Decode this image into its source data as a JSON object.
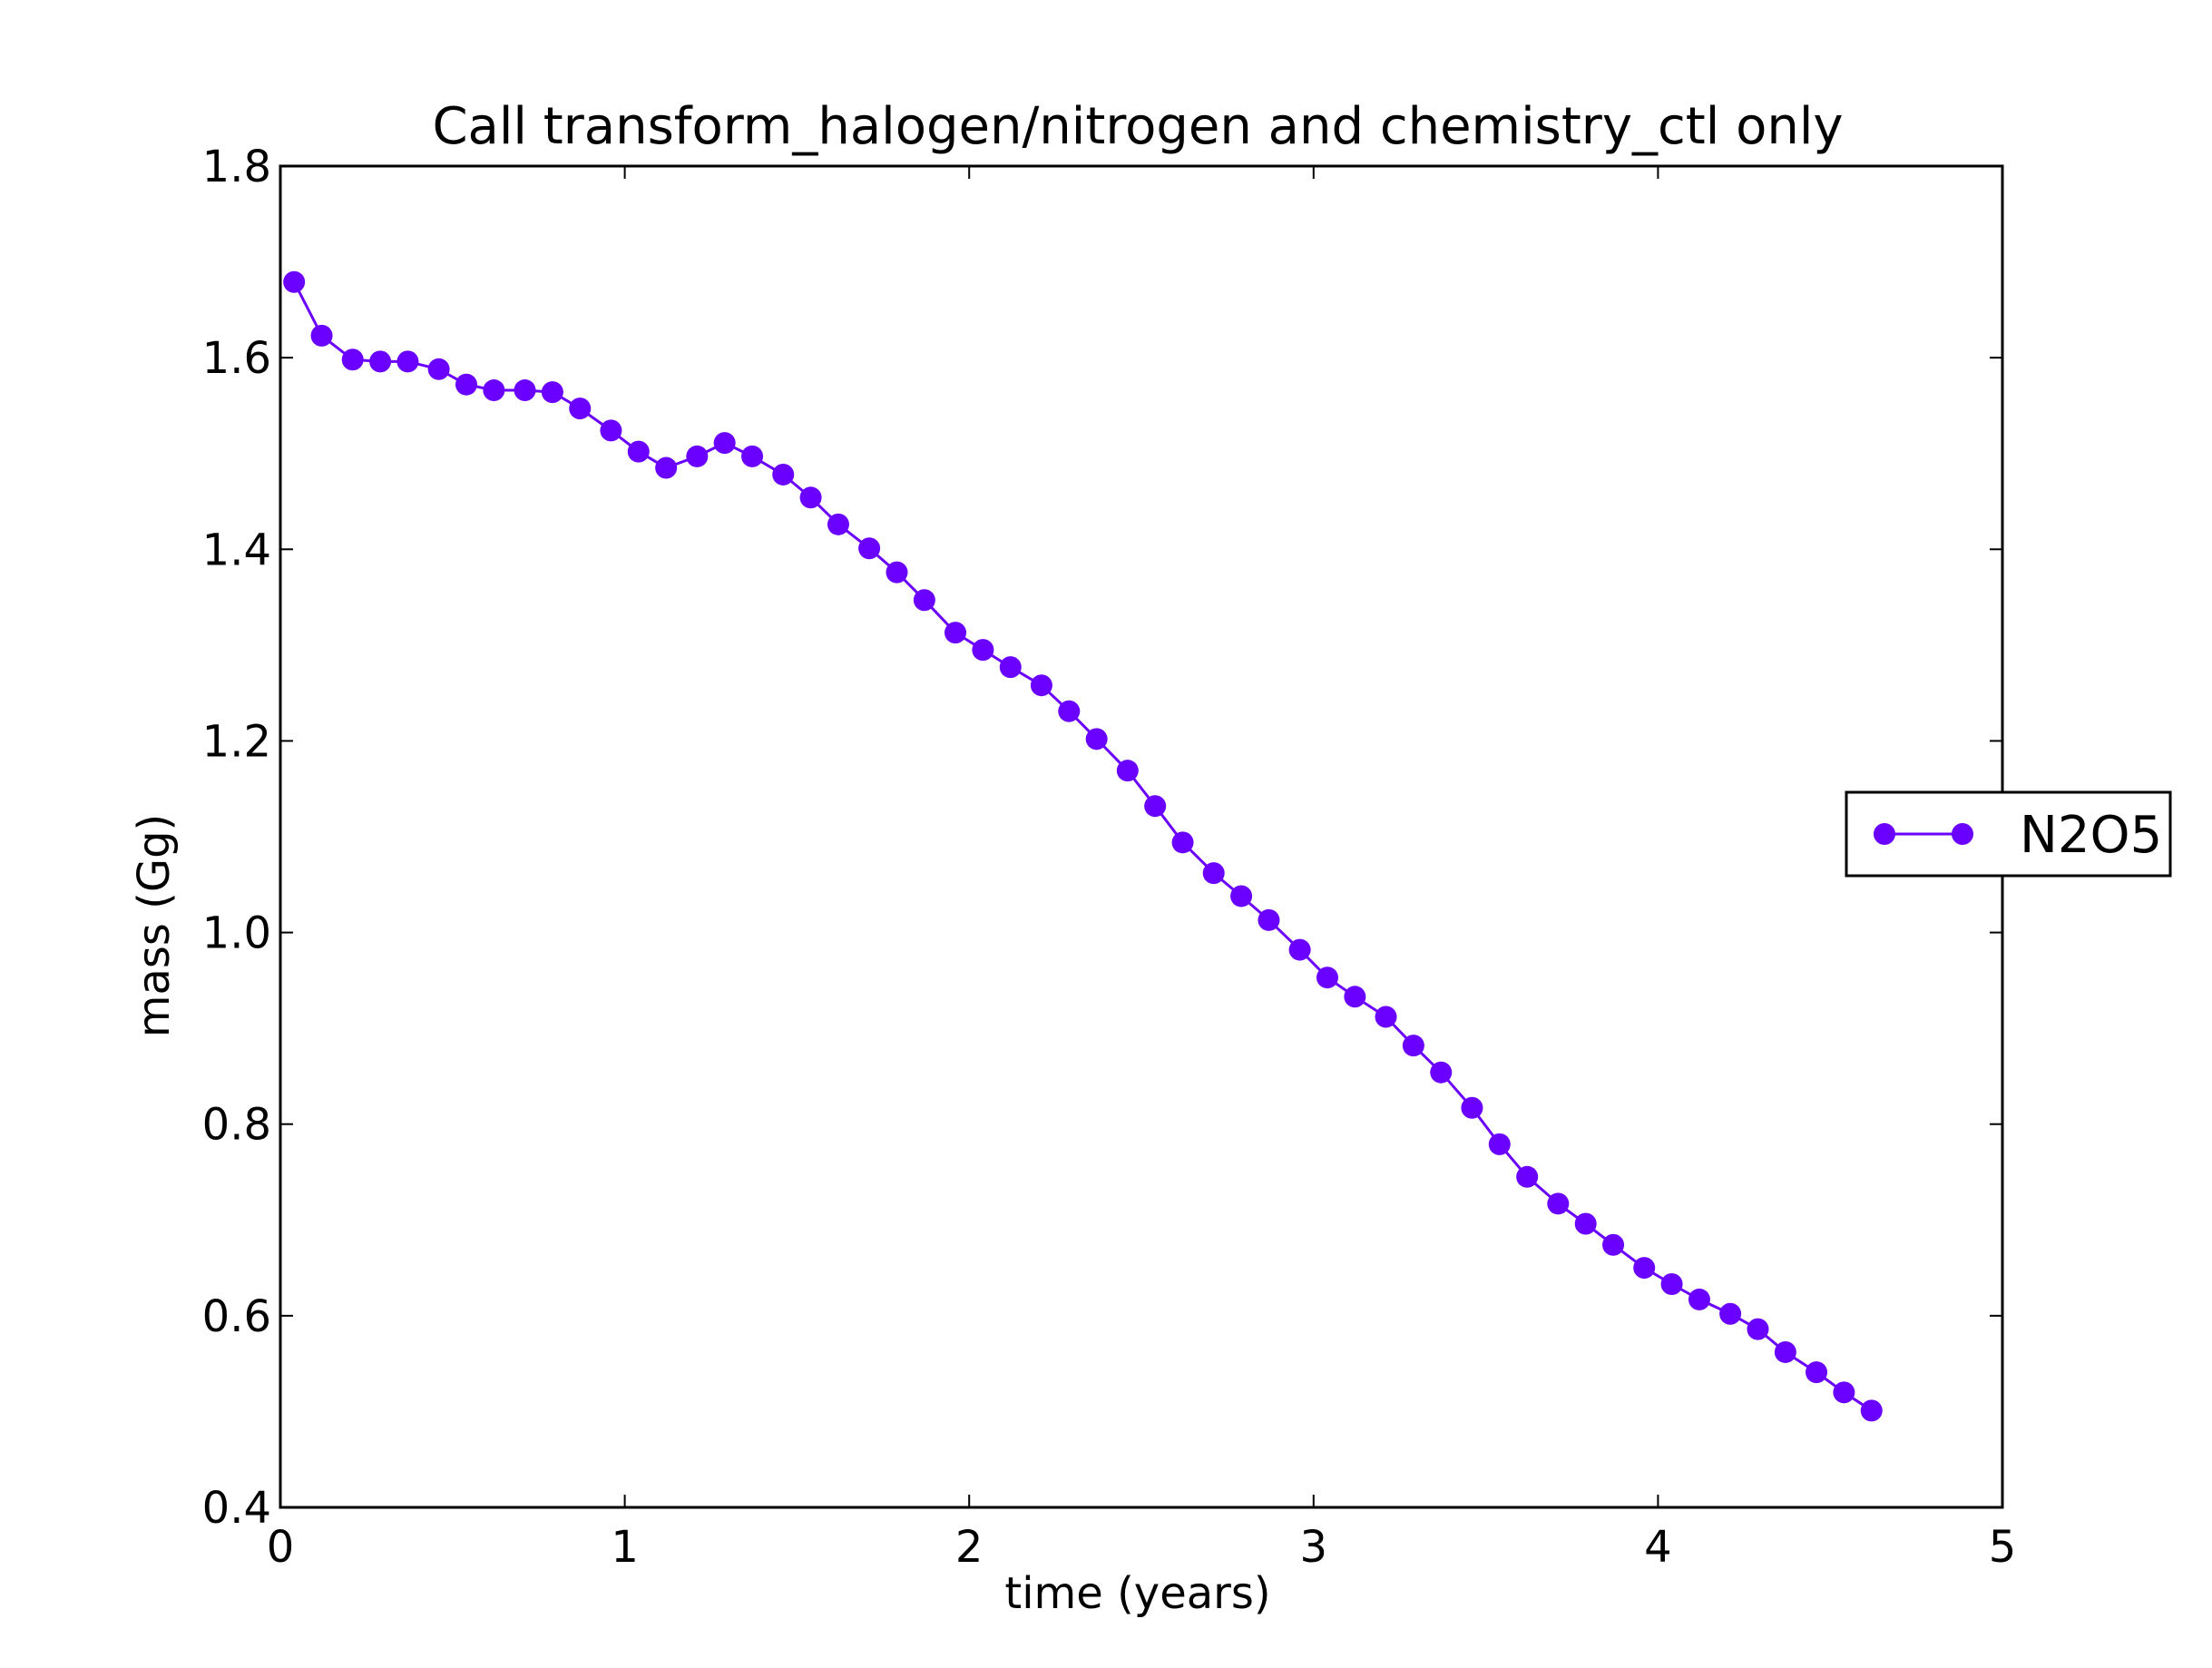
{
  "colors": {
    "series": "#6a00ff",
    "axis": "#000000",
    "background": "#ffffff"
  },
  "chart_data": {
    "type": "line",
    "title": "Call transform_halogen/nitrogen and chemistry_ctl only",
    "xlabel": "time (years)",
    "ylabel": "mass (Gg)",
    "xlim": [
      0,
      5
    ],
    "ylim": [
      0.4,
      1.8
    ],
    "xticks": [
      "0",
      "1",
      "2",
      "3",
      "4",
      "5"
    ],
    "yticks": [
      "0.4",
      "0.6",
      "0.8",
      "1.0",
      "1.2",
      "1.4",
      "1.6",
      "1.8"
    ],
    "grid": false,
    "legend": {
      "position": "right",
      "entries": [
        "N2O5"
      ]
    },
    "series": [
      {
        "name": "N2O5",
        "marker": "circle",
        "x": [
          0.04,
          0.12,
          0.21,
          0.29,
          0.37,
          0.46,
          0.54,
          0.62,
          0.71,
          0.79,
          0.87,
          0.96,
          1.04,
          1.12,
          1.21,
          1.29,
          1.37,
          1.46,
          1.54,
          1.62,
          1.71,
          1.79,
          1.87,
          1.96,
          2.04,
          2.12,
          2.21,
          2.29,
          2.37,
          2.46,
          2.54,
          2.62,
          2.71,
          2.79,
          2.87,
          2.96,
          3.04,
          3.12,
          3.21,
          3.29,
          3.37,
          3.46,
          3.54,
          3.62,
          3.71,
          3.79,
          3.87,
          3.96,
          4.04,
          4.12,
          4.21,
          4.29,
          4.37,
          4.46,
          4.54,
          4.62
        ],
        "y": [
          1.679,
          1.623,
          1.598,
          1.596,
          1.596,
          1.588,
          1.572,
          1.566,
          1.566,
          1.564,
          1.547,
          1.524,
          1.502,
          1.485,
          1.497,
          1.511,
          1.497,
          1.478,
          1.454,
          1.426,
          1.401,
          1.376,
          1.347,
          1.313,
          1.295,
          1.277,
          1.258,
          1.231,
          1.202,
          1.169,
          1.132,
          1.094,
          1.062,
          1.038,
          1.013,
          0.982,
          0.953,
          0.933,
          0.912,
          0.882,
          0.854,
          0.817,
          0.779,
          0.745,
          0.717,
          0.696,
          0.674,
          0.65,
          0.633,
          0.617,
          0.602,
          0.586,
          0.562,
          0.541,
          0.52,
          0.501
        ]
      }
    ]
  }
}
